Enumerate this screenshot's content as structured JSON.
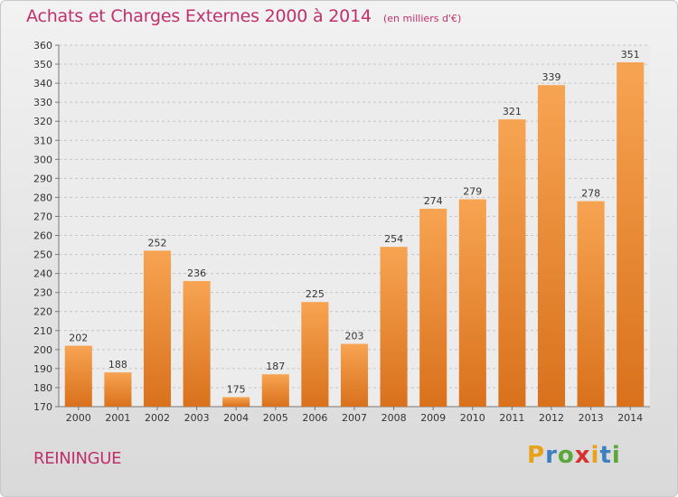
{
  "chart_data": {
    "type": "bar",
    "title": "Achats et Charges Externes 2000 à 2014",
    "subtitle": "(en milliers d'€)",
    "categories": [
      "2000",
      "2001",
      "2002",
      "2003",
      "2004",
      "2005",
      "2006",
      "2007",
      "2008",
      "2009",
      "2010",
      "2011",
      "2012",
      "2013",
      "2014"
    ],
    "values": [
      202,
      188,
      252,
      236,
      175,
      187,
      225,
      203,
      254,
      274,
      279,
      321,
      339,
      278,
      351
    ],
    "ylim": [
      170,
      360
    ],
    "yticks": [
      170,
      180,
      190,
      200,
      210,
      220,
      230,
      240,
      250,
      260,
      270,
      280,
      290,
      300,
      310,
      320,
      330,
      340,
      350,
      360
    ],
    "grid": true,
    "bar_color_top": "#f7a452",
    "bar_color_bottom": "#d9711c"
  },
  "location": "REININGUE",
  "logo": {
    "letters": [
      "P",
      "r",
      "o",
      "x",
      "i",
      "t",
      "i"
    ],
    "colors": [
      "#e8a21a",
      "#3a7fc2",
      "#5aa83a",
      "#d6312f",
      "#e8a21a",
      "#3a7fc2",
      "#5aa83a"
    ]
  }
}
